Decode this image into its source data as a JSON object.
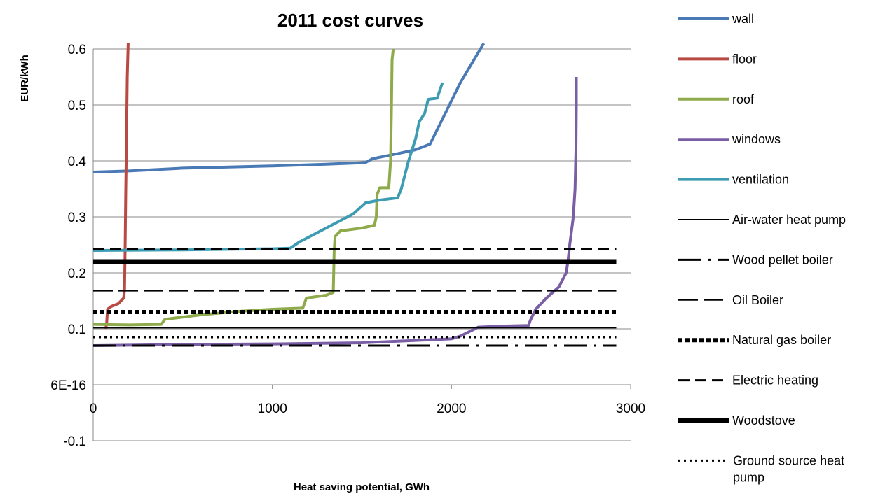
{
  "chart_data": {
    "type": "line",
    "title": "2011 cost curves",
    "xlabel": "Heat saving potential, GWh",
    "ylabel": "EUR/kWh",
    "xlim": [
      0,
      3000
    ],
    "ylim": [
      -0.1,
      0.6
    ],
    "x_ticks": [
      {
        "value": 0,
        "label": "0"
      },
      {
        "value": 1000,
        "label": "1000"
      },
      {
        "value": 2000,
        "label": "2000"
      },
      {
        "value": 3000,
        "label": "3000"
      }
    ],
    "y_ticks": [
      {
        "value": -0.1,
        "label": "-0.1"
      },
      {
        "value": 0,
        "label": "6E-16"
      },
      {
        "value": 0.1,
        "label": "0.1"
      },
      {
        "value": 0.2,
        "label": "0.2"
      },
      {
        "value": 0.3,
        "label": "0.3"
      },
      {
        "value": 0.4,
        "label": "0.4"
      },
      {
        "value": 0.5,
        "label": "0.5"
      },
      {
        "value": 0.6,
        "label": "0.6"
      }
    ],
    "grid": "horizontal",
    "legend_position": "right",
    "series": [
      {
        "name": "wall",
        "color": "#4a7ab5",
        "dash": "solid",
        "width": 4,
        "points": [
          [
            0,
            0.38
          ],
          [
            200,
            0.382
          ],
          [
            500,
            0.387
          ],
          [
            1000,
            0.391
          ],
          [
            1300,
            0.394
          ],
          [
            1520,
            0.397
          ],
          [
            1560,
            0.404
          ],
          [
            1700,
            0.413
          ],
          [
            1800,
            0.42
          ],
          [
            1880,
            0.43
          ],
          [
            1950,
            0.475
          ],
          [
            2050,
            0.54
          ],
          [
            2180,
            0.61
          ]
        ]
      },
      {
        "name": "floor",
        "color": "#b84a43",
        "dash": "solid",
        "width": 4,
        "points": [
          [
            70,
            0.1
          ],
          [
            75,
            0.11
          ],
          [
            80,
            0.135
          ],
          [
            100,
            0.14
          ],
          [
            140,
            0.145
          ],
          [
            170,
            0.155
          ],
          [
            175,
            0.17
          ],
          [
            178,
            0.24
          ],
          [
            182,
            0.35
          ],
          [
            186,
            0.45
          ],
          [
            190,
            0.55
          ],
          [
            195,
            0.61
          ]
        ]
      },
      {
        "name": "roof",
        "color": "#8eaa4b",
        "dash": "solid",
        "width": 4,
        "points": [
          [
            0,
            0.108
          ],
          [
            200,
            0.107
          ],
          [
            380,
            0.108
          ],
          [
            400,
            0.117
          ],
          [
            600,
            0.125
          ],
          [
            800,
            0.131
          ],
          [
            1000,
            0.135
          ],
          [
            1170,
            0.137
          ],
          [
            1190,
            0.155
          ],
          [
            1300,
            0.16
          ],
          [
            1340,
            0.165
          ],
          [
            1345,
            0.24
          ],
          [
            1350,
            0.265
          ],
          [
            1380,
            0.275
          ],
          [
            1500,
            0.28
          ],
          [
            1570,
            0.285
          ],
          [
            1580,
            0.3
          ],
          [
            1585,
            0.34
          ],
          [
            1600,
            0.352
          ],
          [
            1650,
            0.352
          ],
          [
            1660,
            0.4
          ],
          [
            1665,
            0.5
          ],
          [
            1668,
            0.58
          ],
          [
            1675,
            0.6
          ]
        ]
      },
      {
        "name": "windows",
        "color": "#7a5ea5",
        "dash": "solid",
        "width": 4,
        "points": [
          [
            0,
            0.07
          ],
          [
            500,
            0.072
          ],
          [
            1000,
            0.073
          ],
          [
            1500,
            0.075
          ],
          [
            2000,
            0.082
          ],
          [
            2050,
            0.087
          ],
          [
            2100,
            0.095
          ],
          [
            2150,
            0.103
          ],
          [
            2300,
            0.105
          ],
          [
            2430,
            0.106
          ],
          [
            2440,
            0.115
          ],
          [
            2470,
            0.135
          ],
          [
            2530,
            0.155
          ],
          [
            2600,
            0.175
          ],
          [
            2640,
            0.2
          ],
          [
            2650,
            0.22
          ],
          [
            2660,
            0.25
          ],
          [
            2680,
            0.3
          ],
          [
            2690,
            0.35
          ],
          [
            2695,
            0.42
          ],
          [
            2697,
            0.5
          ],
          [
            2697,
            0.55
          ]
        ]
      },
      {
        "name": "ventilation",
        "color": "#3e9cb2",
        "dash": "solid",
        "width": 4,
        "points": [
          [
            0,
            0.24
          ],
          [
            500,
            0.241
          ],
          [
            1000,
            0.243
          ],
          [
            1100,
            0.244
          ],
          [
            1150,
            0.255
          ],
          [
            1300,
            0.28
          ],
          [
            1450,
            0.305
          ],
          [
            1520,
            0.325
          ],
          [
            1600,
            0.33
          ],
          [
            1700,
            0.334
          ],
          [
            1720,
            0.35
          ],
          [
            1760,
            0.4
          ],
          [
            1800,
            0.44
          ],
          [
            1820,
            0.47
          ],
          [
            1850,
            0.485
          ],
          [
            1870,
            0.51
          ],
          [
            1920,
            0.512
          ],
          [
            1950,
            0.54
          ]
        ]
      },
      {
        "name": "Air-water heat pump",
        "color": "#000000",
        "dash": "solid",
        "width": 2,
        "points": [
          [
            0,
            0.102
          ],
          [
            2920,
            0.102
          ]
        ]
      },
      {
        "name": "Wood pellet boiler",
        "color": "#000000",
        "dash": "dashdot",
        "width": 3,
        "points": [
          [
            0,
            0.07
          ],
          [
            2920,
            0.07
          ]
        ]
      },
      {
        "name": "Oil Boiler",
        "color": "#000000",
        "dash": "longdash",
        "width": 2,
        "points": [
          [
            0,
            0.168
          ],
          [
            2920,
            0.168
          ]
        ]
      },
      {
        "name": "Natural gas boiler",
        "color": "#000000",
        "dash": "square",
        "width": 6,
        "points": [
          [
            0,
            0.13
          ],
          [
            2920,
            0.13
          ]
        ]
      },
      {
        "name": "Electric heating",
        "color": "#000000",
        "dash": "dash",
        "width": 3,
        "points": [
          [
            0,
            0.242
          ],
          [
            2920,
            0.242
          ]
        ]
      },
      {
        "name": "Woodstove",
        "color": "#000000",
        "dash": "solid",
        "width": 7,
        "points": [
          [
            0,
            0.22
          ],
          [
            2920,
            0.22
          ]
        ]
      },
      {
        "name": "Ground source heat pump",
        "color": "#000000",
        "dash": "dot",
        "width": 3,
        "points": [
          [
            0,
            0.085
          ],
          [
            2920,
            0.085
          ]
        ]
      }
    ]
  }
}
